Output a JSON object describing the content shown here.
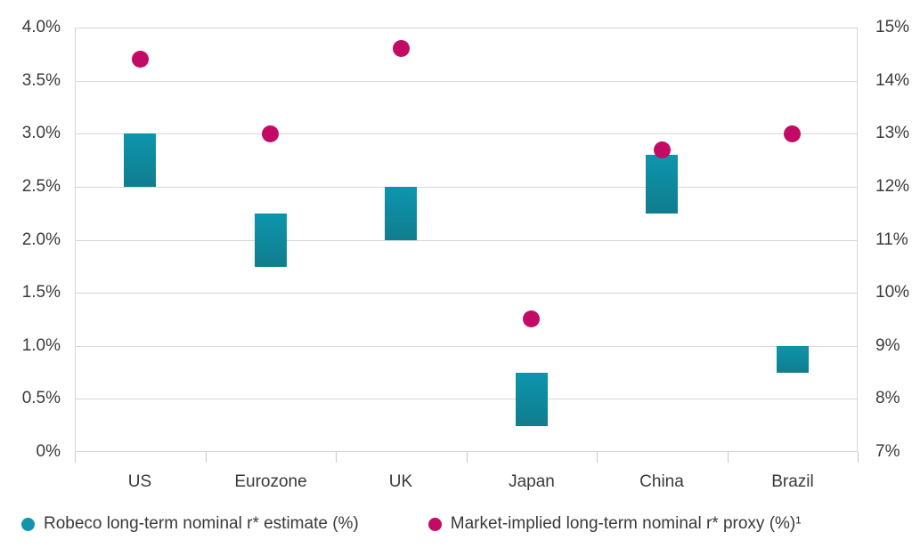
{
  "chart_data": {
    "type": "bar",
    "subtype": "floating-range-bars-with-scatter-dots",
    "title": "",
    "categories": [
      "US",
      "Eurozone",
      "UK",
      "Japan",
      "China",
      "Brazil"
    ],
    "series": [
      {
        "name": "Robeco long-term nominal r* estimate (%)",
        "type": "range-bar",
        "axis": "left",
        "color": "#0e93ab",
        "ranges": [
          [
            2.5,
            3.0
          ],
          [
            1.75,
            2.25
          ],
          [
            2.0,
            2.5
          ],
          [
            0.25,
            0.75
          ],
          [
            2.25,
            2.8
          ],
          [
            0.75,
            1.0
          ]
        ]
      },
      {
        "name": "Market-implied long-term nominal r* proxy (%)¹",
        "type": "scatter",
        "axis": "right",
        "color": "#c30b66",
        "values": [
          14.4,
          13.0,
          14.6,
          9.5,
          12.7,
          13.0
        ]
      }
    ],
    "left_axis": {
      "min": 0,
      "max": 4,
      "step": 0.5,
      "ticks": [
        "4.0%",
        "3.5%",
        "3.0%",
        "2.5%",
        "2.0%",
        "1.5%",
        "1.0%",
        "0.5%",
        "0%"
      ]
    },
    "right_axis": {
      "min": 7,
      "max": 15,
      "step": 1,
      "ticks": [
        "15%",
        "14%",
        "13%",
        "12%",
        "11%",
        "10%",
        "9%",
        "8%",
        "7%"
      ]
    },
    "grid": true,
    "legend_position": "bottom"
  },
  "colors": {
    "bar_gradient_top": "#0d95ae",
    "bar_gradient_bottom": "#107d8d",
    "dot": "#c30b66",
    "legend_bar_swatch": "#1295ab",
    "legend_dot_swatch": "#c30b66",
    "gridline": "#d7d7d7",
    "text": "#3a3a3a"
  }
}
